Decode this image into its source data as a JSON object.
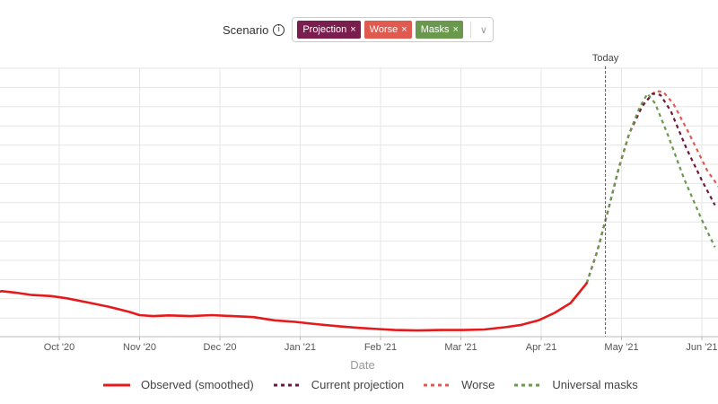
{
  "scenario": {
    "label": "Scenario",
    "info_icon": "i",
    "chips": [
      {
        "label": "Projection",
        "color": "#7a1f4d"
      },
      {
        "label": "Worse",
        "color": "#e05a4f"
      },
      {
        "label": "Masks",
        "color": "#6a994e"
      }
    ],
    "remove_glyph": "×",
    "dropdown_glyph": "∨"
  },
  "chart_data": {
    "type": "line",
    "xlabel": "Date",
    "x_ticks": [
      "Oct '20",
      "Nov '20",
      "Dec '20",
      "Jan '21",
      "Feb '21",
      "Mar '21",
      "Apr '21",
      "May '21",
      "Jun '21"
    ],
    "y_range": [
      0,
      100
    ],
    "grid": true,
    "legend_position": "bottom",
    "annotation": {
      "label": "Today",
      "date": "2021-04-25"
    },
    "series": [
      {
        "name": "Observed (smoothed)",
        "color": "#e41a1c",
        "dash": false,
        "points": [
          [
            "2020-09-04",
            16.5
          ],
          [
            "2020-09-09",
            17.3
          ],
          [
            "2020-09-14",
            16.7
          ],
          [
            "2020-09-20",
            15.8
          ],
          [
            "2020-09-28",
            15.3
          ],
          [
            "2020-10-04",
            14.4
          ],
          [
            "2020-10-12",
            12.7
          ],
          [
            "2020-10-20",
            11.0
          ],
          [
            "2020-10-28",
            8.9
          ],
          [
            "2020-11-01",
            7.6
          ],
          [
            "2020-11-06",
            7.2
          ],
          [
            "2020-11-12",
            7.5
          ],
          [
            "2020-11-20",
            7.2
          ],
          [
            "2020-11-28",
            7.6
          ],
          [
            "2020-12-06",
            7.2
          ],
          [
            "2020-12-14",
            6.8
          ],
          [
            "2020-12-22",
            5.5
          ],
          [
            "2020-12-30",
            4.9
          ],
          [
            "2021-01-07",
            4.0
          ],
          [
            "2021-01-15",
            3.2
          ],
          [
            "2021-01-23",
            2.5
          ],
          [
            "2021-01-31",
            2.0
          ],
          [
            "2021-02-06",
            1.6
          ],
          [
            "2021-02-14",
            1.4
          ],
          [
            "2021-02-22",
            1.6
          ],
          [
            "2021-03-02",
            1.6
          ],
          [
            "2021-03-10",
            1.8
          ],
          [
            "2021-03-18",
            2.7
          ],
          [
            "2021-03-24",
            3.6
          ],
          [
            "2021-03-31",
            5.5
          ],
          [
            "2021-04-06",
            8.5
          ],
          [
            "2021-04-12",
            12.5
          ],
          [
            "2021-04-15",
            16.5
          ],
          [
            "2021-04-18",
            20.5
          ]
        ]
      },
      {
        "name": "Current projection",
        "color": "#6b1a3b",
        "dash": true,
        "points": [
          [
            "2021-04-18",
            20.5
          ],
          [
            "2021-04-22",
            33.5
          ],
          [
            "2021-04-26",
            50.0
          ],
          [
            "2021-04-30",
            67.0
          ],
          [
            "2021-05-04",
            81.0
          ],
          [
            "2021-05-09",
            92.0
          ],
          [
            "2021-05-13",
            97.0
          ],
          [
            "2021-05-16",
            96.5
          ],
          [
            "2021-05-20",
            90.0
          ],
          [
            "2021-05-26",
            75.0
          ],
          [
            "2021-06-01",
            62.0
          ],
          [
            "2021-06-06",
            52.0
          ]
        ]
      },
      {
        "name": "Worse",
        "color": "#e05a4f",
        "dash": true,
        "points": [
          [
            "2021-04-18",
            20.5
          ],
          [
            "2021-04-22",
            33.5
          ],
          [
            "2021-04-26",
            50.0
          ],
          [
            "2021-04-30",
            67.0
          ],
          [
            "2021-05-04",
            81.0
          ],
          [
            "2021-05-09",
            92.0
          ],
          [
            "2021-05-14",
            98.0
          ],
          [
            "2021-05-17",
            97.8
          ],
          [
            "2021-05-21",
            93.0
          ],
          [
            "2021-05-27",
            81.0
          ],
          [
            "2021-06-03",
            66.0
          ],
          [
            "2021-06-09",
            57.0
          ]
        ]
      },
      {
        "name": "Universal masks",
        "color": "#6a994e",
        "dash": true,
        "points": [
          [
            "2021-04-18",
            20.5
          ],
          [
            "2021-04-22",
            33.5
          ],
          [
            "2021-04-26",
            50.0
          ],
          [
            "2021-04-30",
            67.0
          ],
          [
            "2021-05-04",
            81.0
          ],
          [
            "2021-05-08",
            91.5
          ],
          [
            "2021-05-11",
            97.0
          ],
          [
            "2021-05-14",
            93.0
          ],
          [
            "2021-05-19",
            80.0
          ],
          [
            "2021-05-25",
            63.0
          ],
          [
            "2021-06-01",
            46.0
          ],
          [
            "2021-06-06",
            35.0
          ]
        ]
      }
    ]
  }
}
